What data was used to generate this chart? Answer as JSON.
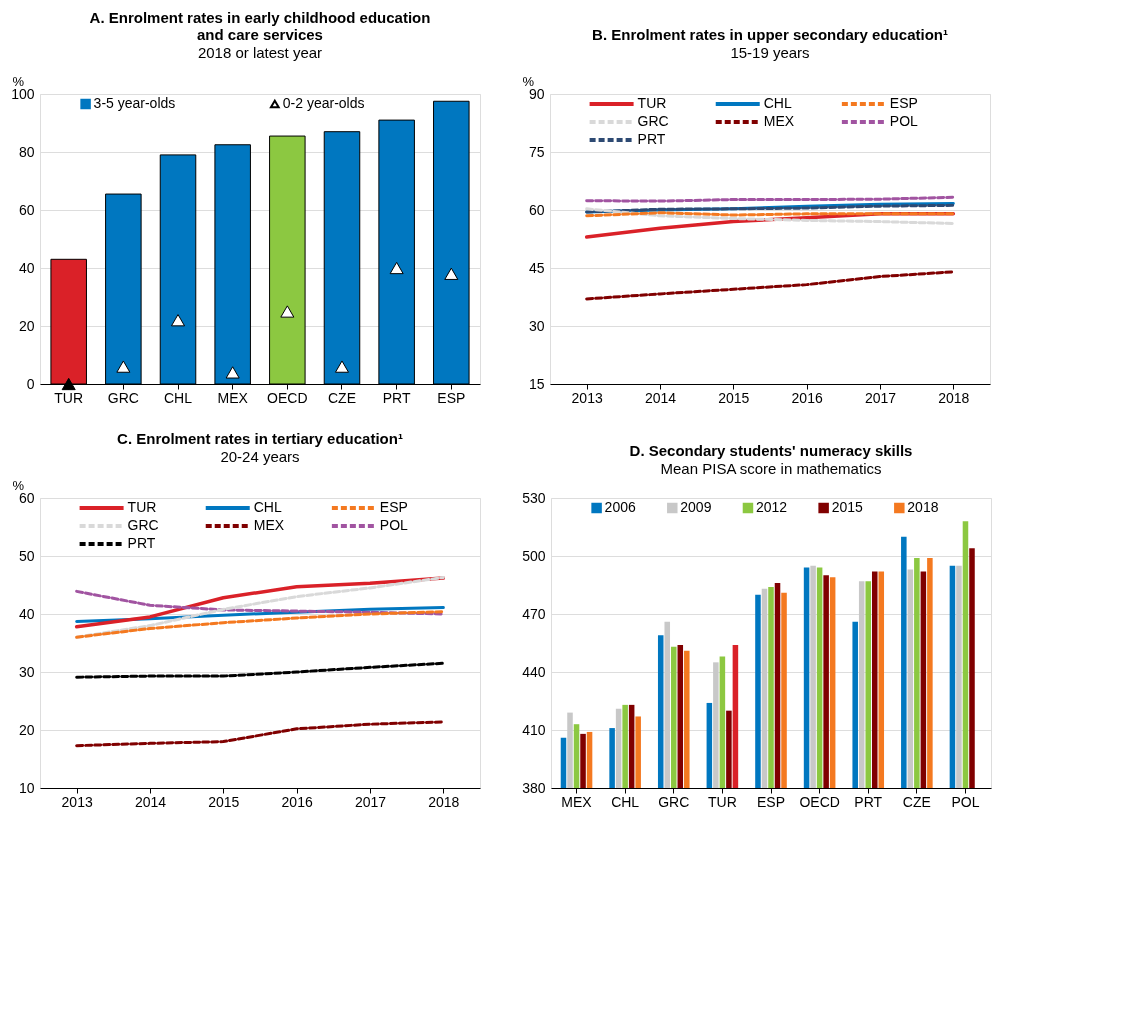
{
  "chart_data": [
    {
      "type": "bar",
      "title": "A. Enrolment rates in early childhood education\nand care services",
      "subtitle": "2018 or latest year",
      "ylabel": "%",
      "categories": [
        "TUR",
        "GRC",
        "CHL",
        "MEX",
        "OECD",
        "CZE",
        "PRT",
        "ESP"
      ],
      "ylim": [
        0,
        100
      ],
      "yticks": [
        0,
        20,
        40,
        60,
        80,
        100
      ],
      "grid": "y",
      "legend": "top",
      "series": [
        {
          "name": "3-5 year-olds",
          "color": "#0077c0",
          "colors": [
            "#da2128",
            "#0077c0",
            "#0077c0",
            "#0077c0",
            "#8cc841",
            "#0077c0",
            "#0077c0",
            "#0077c0"
          ],
          "values": [
            43,
            65.5,
            79,
            82.5,
            85.5,
            87,
            91,
            97.5
          ]
        },
        {
          "name": "0-2 year-olds",
          "type": "scatter",
          "marker": "triangle",
          "color": "#ffffff",
          "colors": [
            "#000000",
            "#ffffff",
            "#ffffff",
            "#ffffff",
            "#ffffff",
            "#ffffff",
            "#ffffff",
            "#ffffff"
          ],
          "values": [
            0,
            6,
            22,
            4,
            25,
            6,
            40,
            38
          ]
        }
      ]
    },
    {
      "type": "line",
      "title": "B. Enrolment rates in upper secondary education¹",
      "subtitle": "15-19 years",
      "ylabel": "%",
      "categories": [
        "2013",
        "2014",
        "2015",
        "2016",
        "2017",
        "2018"
      ],
      "ylim": [
        15,
        90
      ],
      "yticks": [
        15,
        30,
        45,
        60,
        75,
        90
      ],
      "grid": "y",
      "legend": "top",
      "series": [
        {
          "name": "TUR",
          "color": "#da2128",
          "line_style": "solid",
          "values": [
            53,
            55.3,
            57,
            58,
            59,
            59
          ]
        },
        {
          "name": "CHL",
          "color": "#0077c0",
          "line_style": "solid",
          "values": [
            59.5,
            60,
            60.3,
            61,
            61.5,
            61.7
          ]
        },
        {
          "name": "ESP",
          "color": "#f47920",
          "line_style": "dashed",
          "values": [
            58.5,
            59.3,
            58.7,
            59,
            59,
            59
          ]
        },
        {
          "name": "GRC",
          "color": "#d9d9d9",
          "line_style": "dashed",
          "values": [
            60.3,
            58.5,
            57.8,
            57.3,
            57,
            56.5
          ]
        },
        {
          "name": "MEX",
          "color": "#800000",
          "line_style": "dashed",
          "values": [
            37,
            38.3,
            39.5,
            40.7,
            42.8,
            44
          ]
        },
        {
          "name": "POL",
          "color": "#a154a1",
          "line_style": "dashed",
          "values": [
            62.4,
            62.3,
            62.7,
            62.7,
            62.8,
            63.3
          ]
        },
        {
          "name": "PRT",
          "color": "#2d4a73",
          "line_style": "dashed",
          "values": [
            59.5,
            60.2,
            60.3,
            60.5,
            61,
            61.2
          ]
        }
      ]
    },
    {
      "type": "line",
      "title": "C. Enrolment rates in tertiary education¹",
      "subtitle": "20-24 years",
      "ylabel": "%",
      "categories": [
        "2013",
        "2014",
        "2015",
        "2016",
        "2017",
        "2018"
      ],
      "ylim": [
        10,
        60
      ],
      "yticks": [
        10,
        20,
        30,
        40,
        50,
        60
      ],
      "grid": "y",
      "legend": "top",
      "series": [
        {
          "name": "TUR",
          "color": "#da2128",
          "line_style": "solid",
          "values": [
            37.8,
            39.5,
            42.8,
            44.7,
            45.3,
            46.2
          ]
        },
        {
          "name": "CHL",
          "color": "#0077c0",
          "line_style": "solid",
          "values": [
            38.7,
            39.2,
            39.8,
            40.3,
            40.8,
            41.1
          ]
        },
        {
          "name": "ESP",
          "color": "#f47920",
          "line_style": "dashed",
          "values": [
            36,
            37.5,
            38.5,
            39.3,
            40,
            40.4
          ]
        },
        {
          "name": "GRC",
          "color": "#d9d9d9",
          "line_style": "dashed",
          "values": [
            36,
            38,
            40.8,
            43,
            44.5,
            46.3
          ]
        },
        {
          "name": "MEX",
          "color": "#800000",
          "line_style": "dashed",
          "values": [
            17.3,
            17.7,
            18,
            20.2,
            21,
            21.4
          ]
        },
        {
          "name": "POL",
          "color": "#a154a1",
          "line_style": "dashed",
          "values": [
            43.9,
            41.5,
            40.7,
            40.5,
            40.3,
            40
          ]
        },
        {
          "name": "PRT",
          "color": "#000000",
          "line_style": "dashed",
          "values": [
            29.1,
            29.3,
            29.3,
            30,
            30.8,
            31.5
          ]
        }
      ]
    },
    {
      "type": "bar",
      "title": "D. Secondary students' numeracy skills",
      "subtitle": "Mean PISA score in mathematics",
      "categories": [
        "MEX",
        "CHL",
        "GRC",
        "TUR",
        "ESP",
        "OECD",
        "PRT",
        "CZE",
        "POL"
      ],
      "ylim": [
        380,
        530
      ],
      "yticks": [
        380,
        410,
        440,
        470,
        500,
        530
      ],
      "grid": "y",
      "legend": "top",
      "series": [
        {
          "name": "2006",
          "color": "#0077c0",
          "values": [
            406,
            411,
            459,
            424,
            480,
            494,
            466,
            510,
            495
          ]
        },
        {
          "name": "2009",
          "color": "#c8c8c8",
          "values": [
            419,
            421,
            466,
            445,
            483,
            495,
            487,
            493,
            495
          ]
        },
        {
          "name": "2012",
          "color": "#8cc841",
          "values": [
            413,
            423,
            453,
            448,
            484,
            494,
            487,
            499,
            518
          ]
        },
        {
          "name": "2015",
          "color": "#800000",
          "values": [
            408,
            423,
            454,
            420,
            486,
            490,
            492,
            492,
            504
          ]
        },
        {
          "name": "2018",
          "color": "#f47920",
          "colors": [
            "#f47920",
            "#f47920",
            "#f47920",
            "#da2128",
            "#f47920",
            "#f47920",
            "#f47920",
            "#f47920",
            "#f47920"
          ],
          "values": [
            409,
            417,
            451,
            454,
            481,
            489,
            492,
            499,
            null
          ]
        }
      ]
    }
  ]
}
